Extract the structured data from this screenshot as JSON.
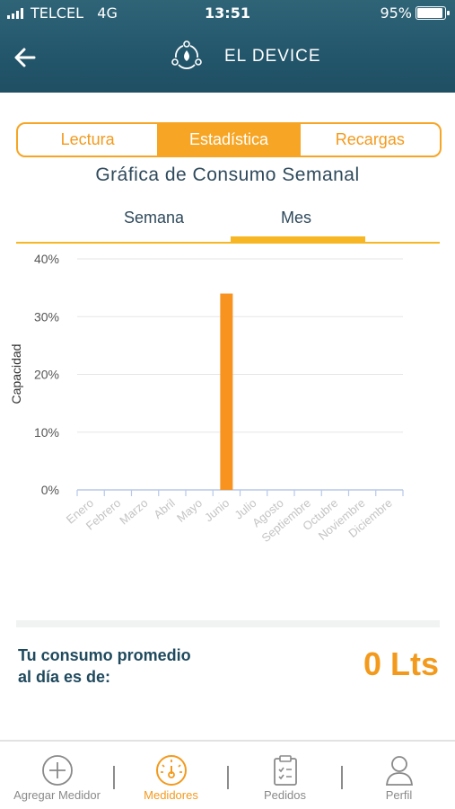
{
  "status_bar": {
    "carrier": "TELCEL",
    "network": "4G",
    "time": "13:51",
    "battery_pct": "95%",
    "battery_level": 0.95
  },
  "header": {
    "title": "EL DEVICE",
    "back_icon": "arrow-left-icon",
    "logo_icon": "gas-device-logo-icon"
  },
  "segment_tabs": [
    {
      "label": "Lectura",
      "active": false
    },
    {
      "label": "Estadística",
      "active": true
    },
    {
      "label": "Recargas",
      "active": false
    }
  ],
  "chart_title": "Gráfica de Consumo Semanal",
  "period_tabs": [
    {
      "label": "Semana",
      "active": false
    },
    {
      "label": "Mes",
      "active": true
    }
  ],
  "chart_data": {
    "type": "bar",
    "ylabel": "Capacidad",
    "ylim": [
      0,
      40
    ],
    "yticks": [
      "0%",
      "10%",
      "20%",
      "30%",
      "40%"
    ],
    "categories": [
      "Enero",
      "Febrero",
      "Marzo",
      "Abril",
      "Mayo",
      "Junio",
      "Julio",
      "Agosto",
      "Septiembre",
      "Octubre",
      "Noviembre",
      "Diciembre"
    ],
    "values": [
      0,
      0,
      0,
      0,
      0,
      34,
      0,
      0,
      0,
      0,
      0,
      0
    ],
    "bar_color": "#f7931e",
    "grid": true
  },
  "summary": {
    "label_line1": "Tu consumo promedio",
    "label_line2": "al día es de:",
    "value": "0 Lts"
  },
  "bottom_nav": [
    {
      "label": "Agregar Medidor",
      "icon": "plus-circle-icon",
      "active": false
    },
    {
      "label": "Medidores",
      "icon": "gauge-icon",
      "active": true
    },
    {
      "label": "Pedidos",
      "icon": "clipboard-icon",
      "active": false
    },
    {
      "label": "Perfil",
      "icon": "user-icon",
      "active": false
    }
  ],
  "colors": {
    "accent": "#f7a524",
    "header_bg": "#23566b",
    "text_dark": "#2f4a5c"
  }
}
